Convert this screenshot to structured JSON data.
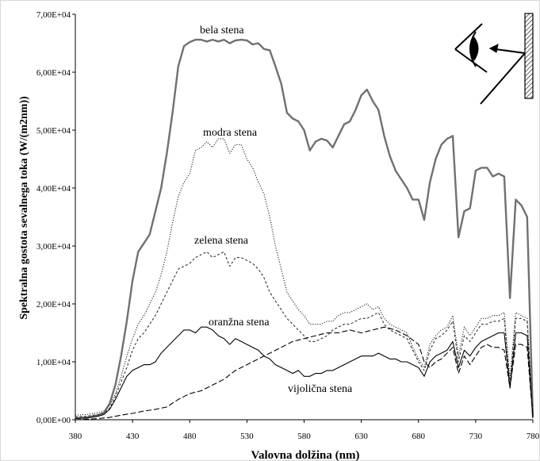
{
  "chart_data": {
    "type": "line",
    "xlabel": "Valovna  dolžina (nm)",
    "ylabel": "Spektralna gostota sevalnega toka (W/(m2nm))",
    "xlim": [
      380,
      780
    ],
    "ylim": [
      0,
      70000
    ],
    "x_ticks": [
      "380",
      "430",
      "480",
      "530",
      "580",
      "630",
      "680",
      "730",
      "780"
    ],
    "y_ticks": [
      "0,00E+00",
      "1,00E+04",
      "2,00E+04",
      "3,00E+04",
      "4,00E+04",
      "5,00E+04",
      "6,00E+04",
      "7,00E+04"
    ],
    "grid": false,
    "series": [
      {
        "name": "bela stena",
        "color": "#707070",
        "dash": "solid",
        "x": [
          380,
          390,
          400,
          405,
          410,
          415,
          420,
          425,
          430,
          435,
          440,
          445,
          450,
          455,
          460,
          465,
          470,
          475,
          480,
          485,
          490,
          495,
          500,
          505,
          510,
          515,
          520,
          525,
          530,
          535,
          540,
          545,
          550,
          555,
          560,
          565,
          570,
          575,
          580,
          585,
          590,
          595,
          600,
          605,
          610,
          615,
          620,
          625,
          630,
          635,
          640,
          645,
          650,
          655,
          660,
          665,
          670,
          675,
          680,
          685,
          690,
          695,
          700,
          705,
          710,
          715,
          720,
          725,
          730,
          735,
          740,
          745,
          750,
          755,
          760,
          765,
          770,
          775,
          780
        ],
        "y": [
          300,
          400,
          800,
          1200,
          2800,
          6000,
          11000,
          17000,
          24000,
          29000,
          30500,
          32000,
          36000,
          40000,
          46000,
          53000,
          61000,
          64500,
          65200,
          65600,
          65600,
          65300,
          65600,
          65300,
          65600,
          65000,
          65500,
          65600,
          65500,
          64800,
          65000,
          64000,
          63800,
          61000,
          58000,
          53000,
          52000,
          51500,
          50000,
          46500,
          48000,
          48500,
          48200,
          47000,
          49000,
          51000,
          51500,
          53500,
          56000,
          57000,
          55000,
          53500,
          49000,
          45500,
          43000,
          41500,
          40000,
          38000,
          38000,
          34500,
          41000,
          45000,
          47500,
          48500,
          49000,
          31500,
          36000,
          36500,
          43000,
          43500,
          43500,
          42000,
          42500,
          42000,
          21000,
          38000,
          37000,
          35000,
          500
        ]
      },
      {
        "name": "modra stena",
        "color": "#222222",
        "dash": "1.2,1.8",
        "x": [
          380,
          390,
          400,
          405,
          410,
          415,
          420,
          425,
          430,
          435,
          440,
          445,
          450,
          455,
          460,
          465,
          470,
          475,
          480,
          485,
          490,
          495,
          500,
          505,
          510,
          515,
          520,
          525,
          530,
          535,
          540,
          545,
          550,
          555,
          560,
          565,
          570,
          575,
          580,
          585,
          590,
          595,
          600,
          605,
          610,
          615,
          620,
          625,
          630,
          635,
          640,
          645,
          650,
          655,
          660,
          665,
          670,
          675,
          680,
          685,
          690,
          695,
          700,
          705,
          710,
          715,
          720,
          725,
          730,
          735,
          740,
          745,
          750,
          755,
          760,
          765,
          770,
          775,
          780
        ],
        "y": [
          800,
          900,
          1200,
          1500,
          2500,
          4500,
          7500,
          11000,
          14000,
          16500,
          18000,
          20000,
          22000,
          25000,
          29000,
          34000,
          38500,
          41000,
          42500,
          46500,
          47000,
          48000,
          47000,
          48500,
          48500,
          46000,
          47500,
          47500,
          45000,
          43500,
          41000,
          39000,
          35000,
          30000,
          26000,
          22000,
          20500,
          19000,
          18000,
          16500,
          16500,
          16500,
          17000,
          17000,
          18000,
          18500,
          18500,
          19000,
          19500,
          20000,
          19000,
          19500,
          17500,
          16500,
          16000,
          15500,
          15000,
          12500,
          10500,
          9000,
          13000,
          14500,
          15500,
          16000,
          18000,
          11000,
          16000,
          14500,
          16000,
          17500,
          17500,
          18000,
          18000,
          18500,
          7000,
          18500,
          18000,
          17500,
          800
        ]
      },
      {
        "name": "zelena stena",
        "color": "#333333",
        "dash": "3,2.5",
        "x": [
          380,
          390,
          400,
          405,
          410,
          415,
          420,
          425,
          430,
          435,
          440,
          445,
          450,
          455,
          460,
          465,
          470,
          475,
          480,
          485,
          490,
          495,
          500,
          505,
          510,
          515,
          520,
          525,
          530,
          535,
          540,
          545,
          550,
          555,
          560,
          565,
          570,
          575,
          580,
          585,
          590,
          595,
          600,
          605,
          610,
          615,
          620,
          625,
          630,
          635,
          640,
          645,
          650,
          655,
          660,
          665,
          670,
          675,
          680,
          685,
          690,
          695,
          700,
          705,
          710,
          715,
          720,
          725,
          730,
          735,
          740,
          745,
          750,
          755,
          760,
          765,
          770,
          775,
          780
        ],
        "y": [
          500,
          600,
          900,
          1100,
          2000,
          4000,
          6500,
          9000,
          12000,
          14000,
          15000,
          16500,
          18000,
          20000,
          22000,
          24000,
          26000,
          26500,
          27000,
          28000,
          28500,
          29000,
          28000,
          28500,
          29000,
          26500,
          28000,
          28000,
          27500,
          27000,
          26000,
          24500,
          22000,
          20500,
          19000,
          17500,
          16500,
          15500,
          14500,
          13500,
          13500,
          14000,
          14500,
          15500,
          16000,
          16500,
          16500,
          17000,
          17500,
          17500,
          18000,
          18500,
          16500,
          15500,
          15000,
          14500,
          14000,
          12000,
          10000,
          8500,
          12000,
          14000,
          14500,
          15500,
          17000,
          10000,
          14500,
          13500,
          15000,
          16500,
          16500,
          17000,
          17000,
          17500,
          6000,
          17500,
          17500,
          17000,
          700
        ]
      },
      {
        "name": "oranžna stena",
        "color": "#000000",
        "dash": "solid",
        "x": [
          380,
          390,
          400,
          405,
          410,
          415,
          420,
          425,
          430,
          435,
          440,
          445,
          450,
          455,
          460,
          465,
          470,
          475,
          480,
          485,
          490,
          495,
          500,
          505,
          510,
          515,
          520,
          525,
          530,
          535,
          540,
          545,
          550,
          555,
          560,
          565,
          570,
          575,
          580,
          585,
          590,
          595,
          600,
          605,
          610,
          615,
          620,
          625,
          630,
          635,
          640,
          645,
          650,
          655,
          660,
          665,
          670,
          675,
          680,
          685,
          690,
          695,
          700,
          705,
          710,
          715,
          720,
          725,
          730,
          735,
          740,
          745,
          750,
          755,
          760,
          765,
          770,
          775,
          780
        ],
        "y": [
          200,
          300,
          600,
          900,
          1800,
          3500,
          5500,
          7500,
          8500,
          9000,
          9500,
          9500,
          10000,
          11500,
          12500,
          13500,
          14500,
          15500,
          15500,
          15000,
          16000,
          16000,
          15500,
          14500,
          14000,
          13000,
          14000,
          13500,
          13000,
          12500,
          12000,
          11000,
          10500,
          9500,
          9000,
          8500,
          8000,
          8500,
          7500,
          7500,
          8000,
          8000,
          8500,
          8500,
          9000,
          9500,
          10000,
          10500,
          11000,
          11000,
          11000,
          11500,
          11000,
          10500,
          10500,
          10000,
          10000,
          9500,
          9000,
          7500,
          10000,
          11000,
          11500,
          12000,
          13500,
          9000,
          12000,
          11000,
          12500,
          13500,
          14000,
          14500,
          15000,
          15000,
          5500,
          15000,
          15000,
          14500,
          300
        ]
      },
      {
        "name": "vijolična stena",
        "color": "#000000",
        "dash": "7,3",
        "x": [
          380,
          390,
          400,
          410,
          420,
          430,
          440,
          450,
          460,
          470,
          480,
          490,
          500,
          510,
          520,
          530,
          540,
          550,
          560,
          570,
          580,
          590,
          600,
          610,
          620,
          630,
          640,
          650,
          660,
          670,
          680,
          685,
          690,
          695,
          700,
          705,
          710,
          715,
          720,
          725,
          730,
          735,
          740,
          745,
          750,
          755,
          760,
          765,
          770,
          775,
          780
        ],
        "y": [
          0,
          100,
          200,
          400,
          800,
          1100,
          1500,
          1800,
          2200,
          3500,
          4500,
          5000,
          6000,
          7000,
          8500,
          9500,
          10500,
          11500,
          12500,
          13500,
          14000,
          14500,
          15000,
          15000,
          15500,
          15000,
          15500,
          16000,
          15500,
          14500,
          13000,
          10000,
          9000,
          10000,
          10500,
          11500,
          12500,
          8000,
          11000,
          9500,
          11000,
          12500,
          13000,
          12500,
          12500,
          12000,
          5500,
          13000,
          13000,
          12500,
          300
        ]
      }
    ]
  },
  "annotations": {
    "bela": "bela stena",
    "modra": "modra stena",
    "zelena": "zelena stena",
    "oranzna": "oranžna stena",
    "vijolicna": "vijolična stena"
  }
}
